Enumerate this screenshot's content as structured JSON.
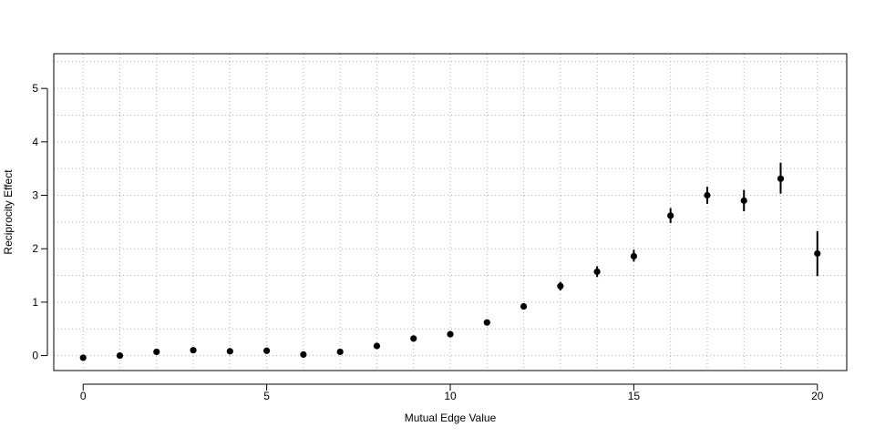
{
  "chart_data": {
    "type": "scatter",
    "xlabel": "Mutual Edge Value",
    "ylabel": "Reciprocity Effect",
    "xlim": [
      -0.8,
      20.8
    ],
    "ylim": [
      -0.28,
      5.65
    ],
    "xticks": [
      0,
      5,
      10,
      15,
      20
    ],
    "yticks": [
      0,
      1,
      2,
      3,
      4,
      5
    ],
    "grid": true,
    "grid_minor_y": [
      0.5,
      1.5,
      2.5,
      3.5,
      4.5,
      5.5
    ],
    "colors": {
      "points": "#000000",
      "grid": "#b3b3b3",
      "frame": "#000000"
    },
    "series": [
      {
        "x": [
          0,
          1,
          2,
          3,
          4,
          5,
          6,
          7,
          8,
          9,
          10,
          11,
          12,
          13,
          14,
          15,
          16,
          17,
          18,
          19,
          20
        ],
        "y": [
          -0.04,
          0.0,
          0.07,
          0.1,
          0.08,
          0.09,
          0.02,
          0.07,
          0.18,
          0.32,
          0.4,
          0.62,
          0.92,
          1.3,
          1.57,
          1.86,
          2.62,
          3.0,
          2.9,
          3.31,
          1.91
        ],
        "y_low": [
          -0.07,
          -0.03,
          0.04,
          0.07,
          0.05,
          0.06,
          -0.01,
          0.04,
          0.15,
          0.28,
          0.36,
          0.57,
          0.86,
          1.22,
          1.47,
          1.76,
          2.48,
          2.84,
          2.7,
          3.03,
          1.49
        ],
        "y_high": [
          -0.01,
          0.03,
          0.1,
          0.13,
          0.11,
          0.12,
          0.05,
          0.1,
          0.21,
          0.36,
          0.44,
          0.67,
          0.98,
          1.38,
          1.67,
          1.98,
          2.76,
          3.16,
          3.1,
          3.61,
          2.33
        ],
        "rug_depth": [
          0,
          0,
          0.4,
          0.4,
          0.4,
          0.5,
          0.5,
          0.4,
          0.4,
          0.4,
          0.4,
          0.4,
          0.4,
          0.4,
          0.4,
          0.6,
          0.4,
          0.4,
          0.4,
          0.4,
          0.4
        ]
      }
    ]
  }
}
